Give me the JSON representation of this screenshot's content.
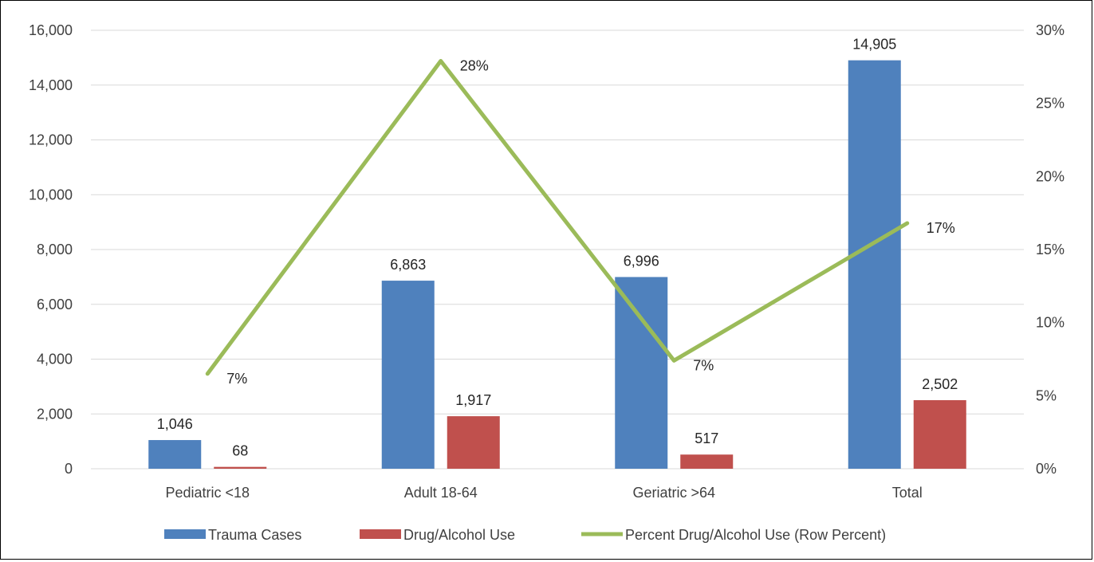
{
  "chart_data": {
    "type": "bar",
    "categories": [
      "Pediatric <18",
      "Adult 18-64",
      "Geriatric >64",
      "Total"
    ],
    "series": [
      {
        "name": "Trauma Cases",
        "type": "bar",
        "axis": "left",
        "color": "#4F81BD",
        "values": [
          1046,
          6863,
          6996,
          14905
        ],
        "labels": [
          "1,046",
          "6,863",
          "6,996",
          "14,905"
        ]
      },
      {
        "name": "Drug/Alcohol Use",
        "type": "bar",
        "axis": "left",
        "color": "#C0504D",
        "values": [
          68,
          1917,
          517,
          2502
        ],
        "labels": [
          "68",
          "1,917",
          "517",
          "2,502"
        ]
      },
      {
        "name": "Percent Drug/Alcohol Use (Row Percent)",
        "type": "line",
        "axis": "right",
        "color": "#9BBB59",
        "values": [
          6.5,
          27.9,
          7.4,
          16.8
        ],
        "labels": [
          "7%",
          "28%",
          "7%",
          "17%"
        ]
      }
    ],
    "y_left": {
      "min": 0,
      "max": 16000,
      "ticks": [
        "0",
        "2,000",
        "4,000",
        "6,000",
        "8,000",
        "10,000",
        "12,000",
        "14,000",
        "16,000"
      ]
    },
    "y_right": {
      "min": 0,
      "max": 30,
      "ticks": [
        "0%",
        "5%",
        "10%",
        "15%",
        "20%",
        "25%",
        "30%"
      ]
    },
    "grid": true,
    "legend_position": "bottom",
    "title": "",
    "xlabel": "",
    "ylabel": ""
  }
}
